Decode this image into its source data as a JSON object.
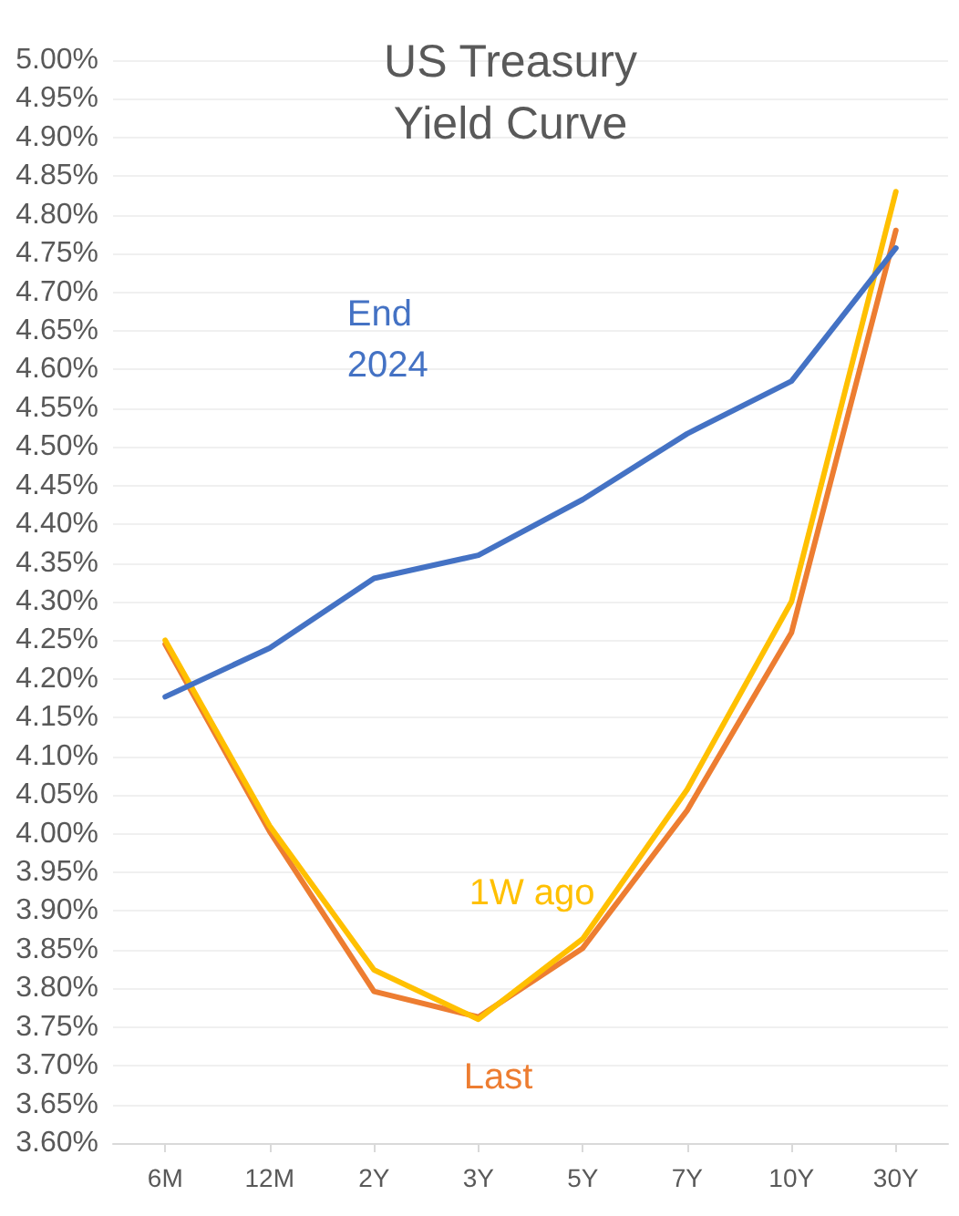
{
  "chart_data": {
    "type": "line",
    "title": "US Treasury\nYield Curve",
    "categories": [
      "6M",
      "12M",
      "2Y",
      "3Y",
      "5Y",
      "7Y",
      "10Y",
      "30Y"
    ],
    "series": [
      {
        "name": "End 2024",
        "color": "#4472c4",
        "values": [
          4.177,
          4.24,
          4.33,
          4.36,
          4.432,
          4.517,
          4.585,
          4.757
        ]
      },
      {
        "name": "1W ago",
        "color": "#ffc000",
        "values": [
          4.25,
          4.01,
          3.824,
          3.76,
          3.864,
          4.057,
          4.3,
          4.83
        ]
      },
      {
        "name": "Last",
        "color": "#ed7d31",
        "values": [
          4.245,
          4.003,
          3.796,
          3.763,
          3.852,
          4.03,
          4.26,
          4.78
        ]
      }
    ],
    "ylim": [
      3.6,
      5.0
    ],
    "yticks": [
      {
        "value": 3.6,
        "label": "3.60%"
      },
      {
        "value": 3.65,
        "label": "3.65%"
      },
      {
        "value": 3.7,
        "label": "3.70%"
      },
      {
        "value": 3.75,
        "label": "3.75%"
      },
      {
        "value": 3.8,
        "label": "3.80%"
      },
      {
        "value": 3.85,
        "label": "3.85%"
      },
      {
        "value": 3.9,
        "label": "3.90%"
      },
      {
        "value": 3.95,
        "label": "3.95%"
      },
      {
        "value": 4.0,
        "label": "4.00%"
      },
      {
        "value": 4.05,
        "label": "4.05%"
      },
      {
        "value": 4.1,
        "label": "4.10%"
      },
      {
        "value": 4.15,
        "label": "4.15%"
      },
      {
        "value": 4.2,
        "label": "4.20%"
      },
      {
        "value": 4.25,
        "label": "4.25%"
      },
      {
        "value": 4.3,
        "label": "4.30%"
      },
      {
        "value": 4.35,
        "label": "4.35%"
      },
      {
        "value": 4.4,
        "label": "4.40%"
      },
      {
        "value": 4.45,
        "label": "4.45%"
      },
      {
        "value": 4.5,
        "label": "4.50%"
      },
      {
        "value": 4.55,
        "label": "4.55%"
      },
      {
        "value": 4.6,
        "label": "4.60%"
      },
      {
        "value": 4.65,
        "label": "4.65%"
      },
      {
        "value": 4.7,
        "label": "4.70%"
      },
      {
        "value": 4.75,
        "label": "4.75%"
      },
      {
        "value": 4.8,
        "label": "4.80%"
      },
      {
        "value": 4.85,
        "label": "4.85%"
      },
      {
        "value": 4.9,
        "label": "4.90%"
      },
      {
        "value": 4.95,
        "label": "4.95%"
      },
      {
        "value": 5.0,
        "label": "5.00%"
      }
    ],
    "grid": "y",
    "marker": "none",
    "line_style": "solid",
    "legend": false
  }
}
